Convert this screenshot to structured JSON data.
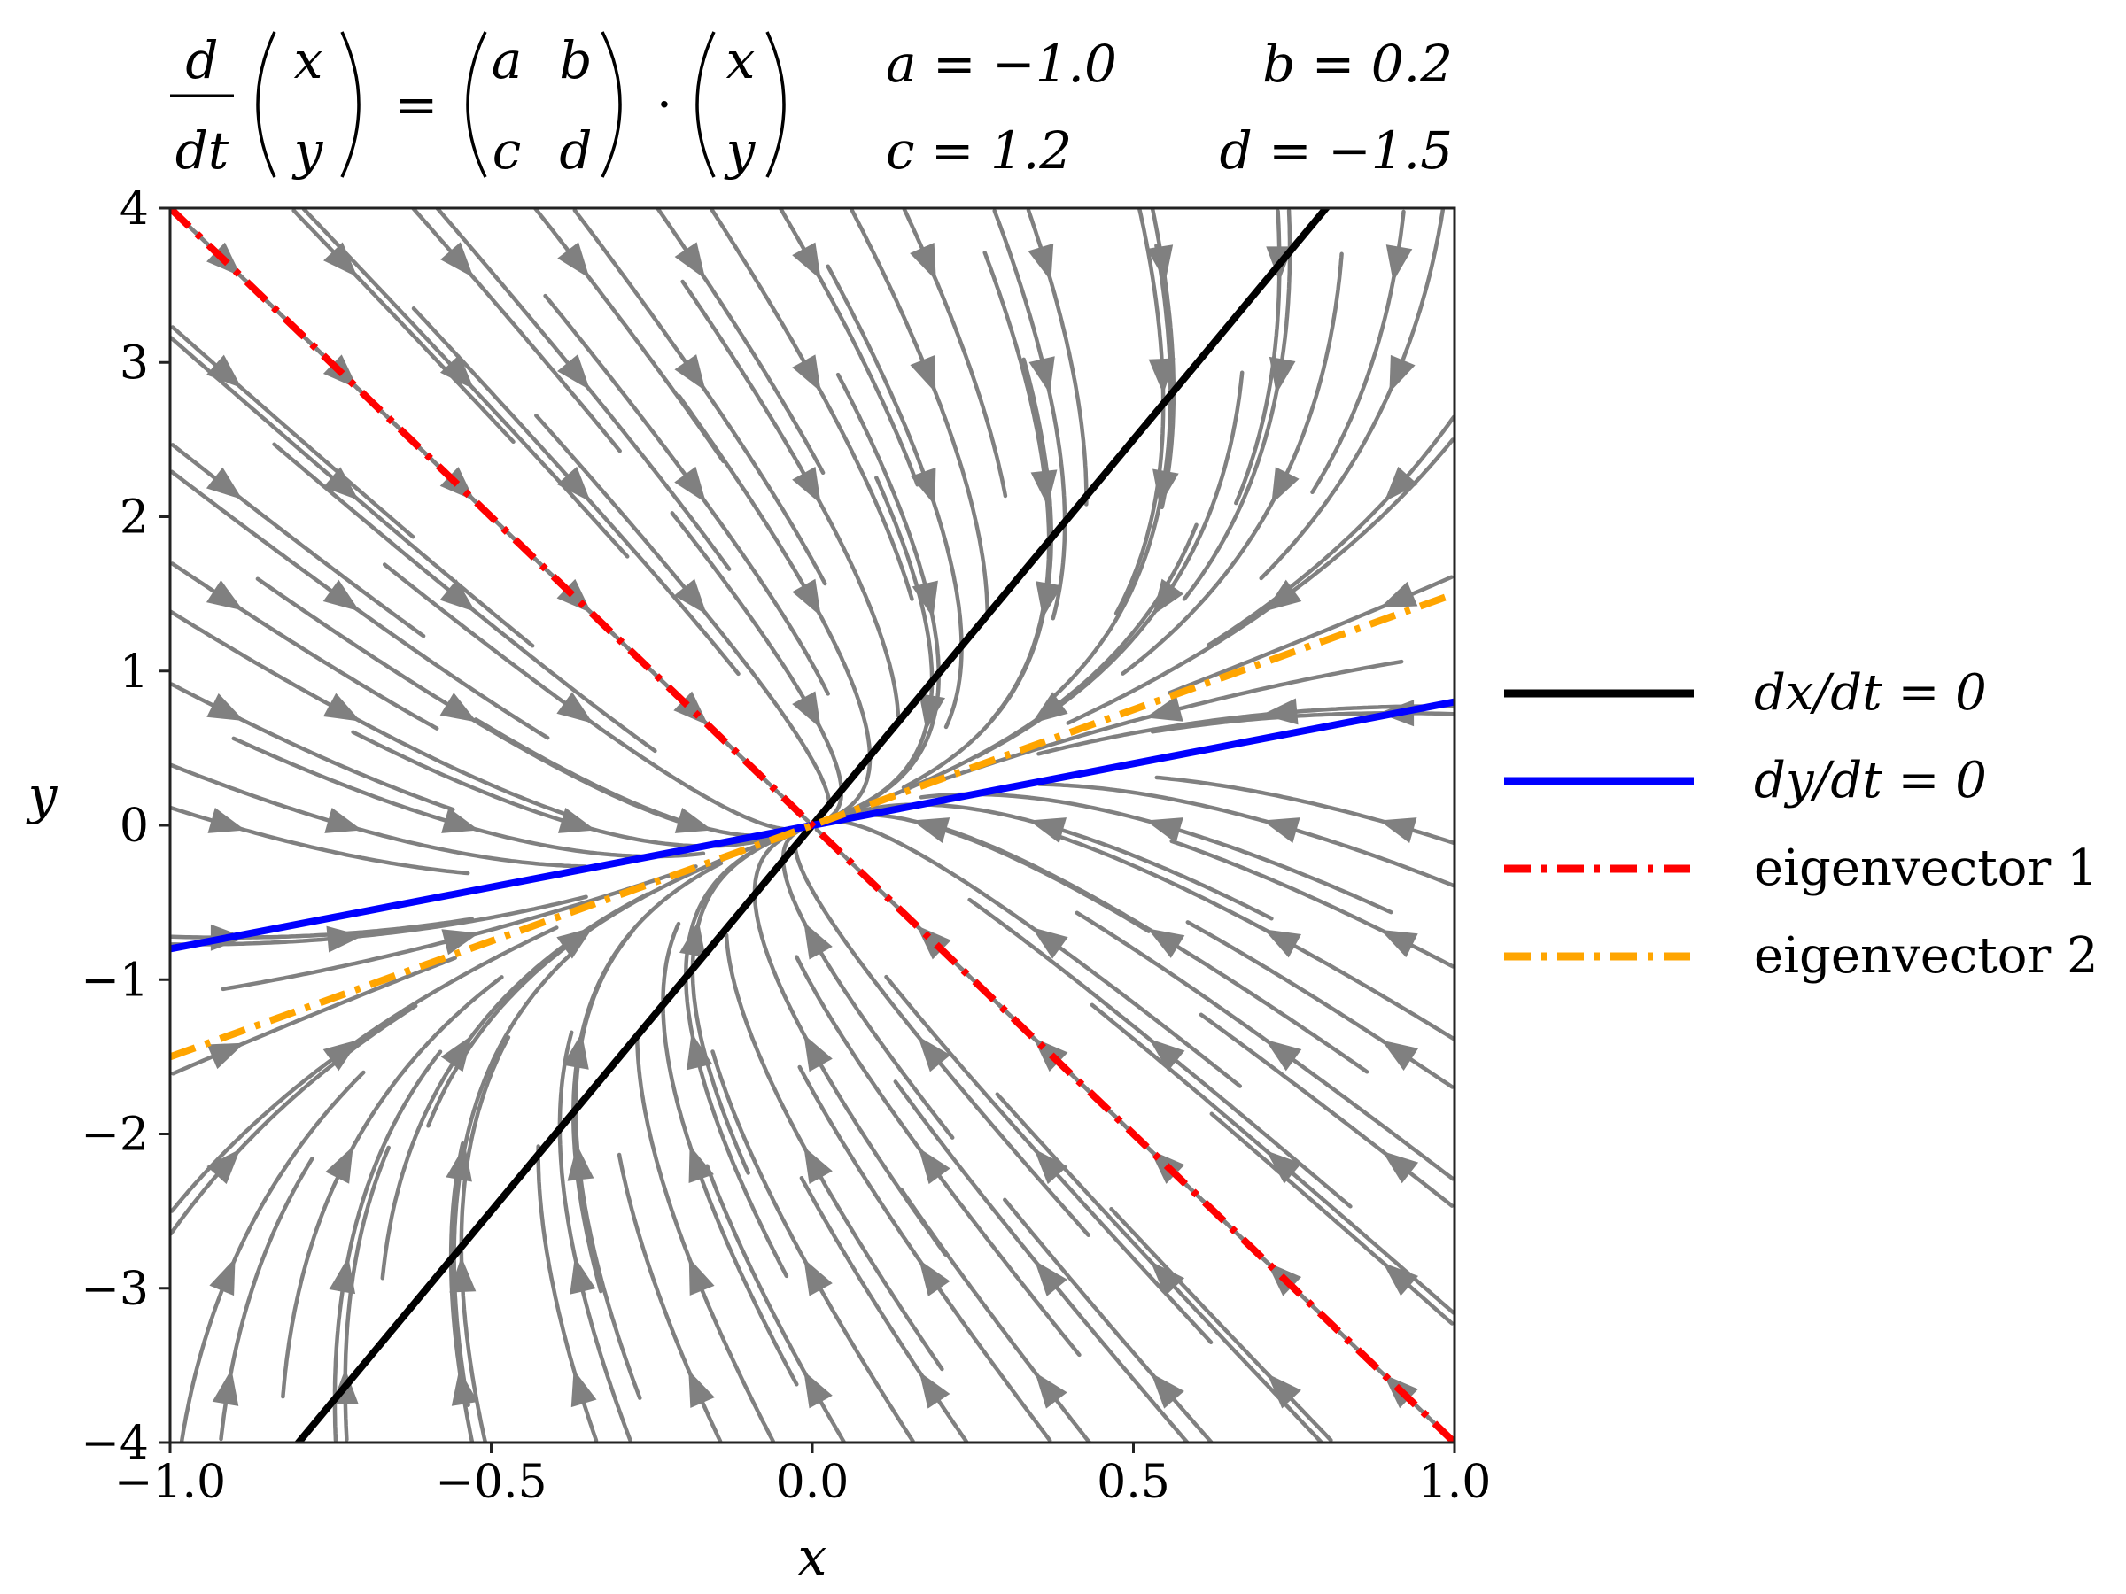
{
  "chart_data": {
    "type": "streamplot",
    "title": {
      "lhs_num": "d",
      "lhs_den": "dt",
      "vec_top": "x",
      "vec_bottom": "y",
      "equals": "=",
      "matrix": [
        [
          "a",
          "b"
        ],
        [
          "c",
          "d"
        ]
      ],
      "dot": "·",
      "params": [
        {
          "label": "a = −1.0"
        },
        {
          "label": "b = 0.2"
        },
        {
          "label": "c = 1.2"
        },
        {
          "label": "d = −1.5"
        }
      ]
    },
    "system": {
      "a": -1.0,
      "b": 0.2,
      "c": 1.2,
      "d": -1.5
    },
    "xlabel": "x",
    "ylabel": "y",
    "xlim": [
      -1.0,
      1.0
    ],
    "ylim": [
      -4,
      4
    ],
    "xticks": [
      "−1.0",
      "−0.5",
      "0.0",
      "0.5",
      "1.0"
    ],
    "yticks": [
      "−4",
      "−3",
      "−2",
      "−1",
      "0",
      "1",
      "2",
      "3",
      "4"
    ],
    "grid": false,
    "legend_position": "right",
    "series": [
      {
        "name": "dx/dt = 0",
        "style": "solid",
        "color": "#000000",
        "slope": 5.0
      },
      {
        "name": "dy/dt = 0",
        "style": "solid",
        "color": "#0000ff",
        "slope": 0.8
      },
      {
        "name": "eigenvector 1",
        "style": "dashdot",
        "color": "#ff0000",
        "slope": -4.0
      },
      {
        "name": "eigenvector 2",
        "style": "dashdot",
        "color": "#ffa500",
        "slope": 1.5
      }
    ],
    "stream_color": "#808080"
  }
}
